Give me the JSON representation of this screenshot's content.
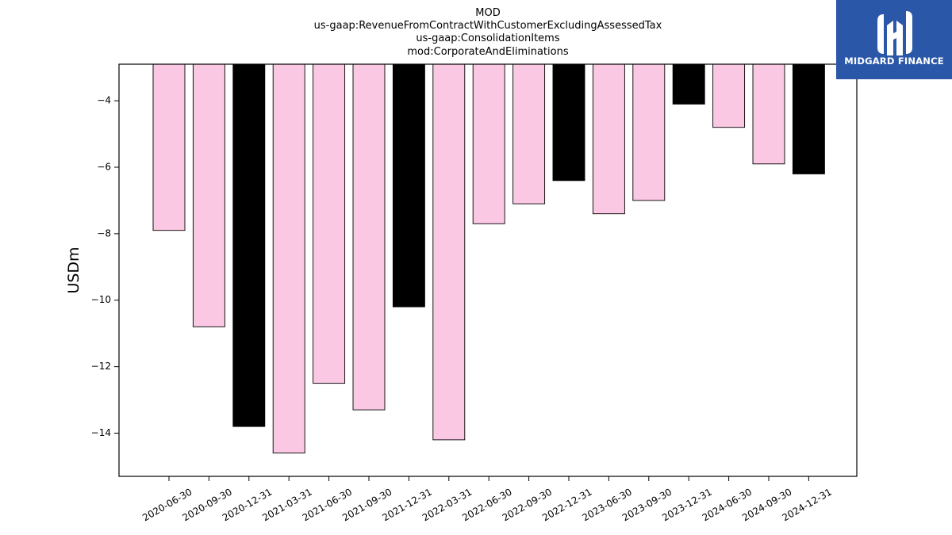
{
  "chart_data": {
    "type": "bar",
    "title_lines": [
      "MOD",
      "us-gaap:RevenueFromContractWithCustomerExcludingAssessedTax",
      "us-gaap:ConsolidationItems",
      "mod:CorporateAndEliminations"
    ],
    "xlabel": "",
    "ylabel": "USDm",
    "categories": [
      "2020-06-30",
      "2020-09-30",
      "2020-12-31",
      "2021-03-31",
      "2021-06-30",
      "2021-09-30",
      "2021-12-31",
      "2022-03-31",
      "2022-06-30",
      "2022-09-30",
      "2022-12-31",
      "2023-06-30",
      "2023-09-30",
      "2023-12-31",
      "2024-06-30",
      "2024-09-30",
      "2024-12-31"
    ],
    "values": [
      -7.9,
      -10.8,
      -13.8,
      -14.6,
      -12.5,
      -13.3,
      -10.2,
      -14.2,
      -7.7,
      -7.1,
      -6.4,
      -7.4,
      -7.0,
      -4.1,
      -4.8,
      -5.9,
      -6.2
    ],
    "bar_colors": [
      "#fbc8e3",
      "#fbc8e3",
      "#000000",
      "#fbc8e3",
      "#fbc8e3",
      "#fbc8e3",
      "#000000",
      "#fbc8e3",
      "#fbc8e3",
      "#fbc8e3",
      "#000000",
      "#fbc8e3",
      "#fbc8e3",
      "#000000",
      "#fbc8e3",
      "#fbc8e3",
      "#000000"
    ],
    "ylim": [
      -15.3,
      -2.9
    ],
    "yticks": [
      -4,
      -6,
      -8,
      -10,
      -12,
      -14
    ],
    "grid": false,
    "legend": null
  },
  "logo": {
    "text": "MIDGARD FINANCE",
    "background": "#2b57a8",
    "icon": "midgard-finance-logo-icon"
  }
}
